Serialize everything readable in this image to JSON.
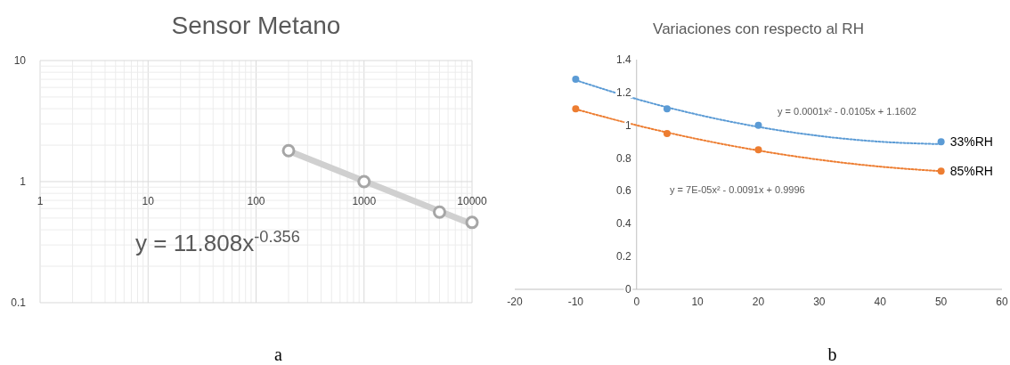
{
  "chart_data": [
    {
      "type": "scatter",
      "title": "Sensor Metano",
      "log": "xy",
      "xlim": [
        1,
        10000
      ],
      "ylim": [
        0.1,
        10
      ],
      "xticks": [
        1,
        10,
        100,
        1000,
        10000
      ],
      "yticks": [
        0.1,
        1,
        10
      ],
      "grid": true,
      "legend": false,
      "marker": "circle",
      "series": [
        {
          "type": "line",
          "marker": "none",
          "color": "#d0d0d0",
          "x": [
            200,
            10000
          ],
          "values": [
            1.79,
            0.445
          ]
        },
        {
          "type": "scatter",
          "color": "#a6a6a6",
          "x": [
            200,
            1000,
            5000,
            10000
          ],
          "values": [
            1.8,
            1.0,
            0.56,
            0.46
          ]
        }
      ],
      "annotations": [
        "y = 11.808x$^{-0.356}$",
        "a"
      ]
    },
    {
      "type": "scatter",
      "title": "Variaciones con respecto al RH",
      "xlim": [
        -20,
        60
      ],
      "ylim": [
        0,
        1.4
      ],
      "xticks": [
        -20,
        -10,
        0,
        10,
        20,
        30,
        40,
        50,
        60
      ],
      "yticks": [
        0,
        0.2,
        0.4,
        0.6,
        0.8,
        1,
        1.2,
        1.4
      ],
      "grid": false,
      "legend": false,
      "marker": "circle",
      "series": [
        {
          "type": "line",
          "marker": "none",
          "line_style": "dotted",
          "color": "#5b9bd5",
          "x": [
            -10,
            0,
            10,
            20,
            30,
            40,
            50
          ],
          "values": [
            1.275,
            1.16,
            1.065,
            0.99,
            0.935,
            0.9,
            0.885
          ]
        },
        {
          "type": "line",
          "marker": "none",
          "line_style": "dotted",
          "color": "#ed7d31",
          "x": [
            -10,
            0,
            10,
            20,
            30,
            40,
            50
          ],
          "values": [
            1.098,
            1.0,
            0.916,
            0.846,
            0.79,
            0.748,
            0.72
          ]
        },
        {
          "type": "scatter",
          "name": "33%RH",
          "color": "#5b9bd5",
          "x": [
            -10,
            5,
            20,
            50
          ],
          "values": [
            1.28,
            1.1,
            1.0,
            0.9
          ]
        },
        {
          "type": "scatter",
          "name": "85%RH",
          "color": "#ed7d31",
          "x": [
            -10,
            5,
            20,
            50
          ],
          "values": [
            1.1,
            0.95,
            0.85,
            0.72
          ]
        }
      ],
      "annotations": [
        "y = 0.0001x² - 0.0105x + 1.1602",
        "y = 7E-05x² - 0.0091x + 0.9996",
        "b"
      ]
    }
  ]
}
